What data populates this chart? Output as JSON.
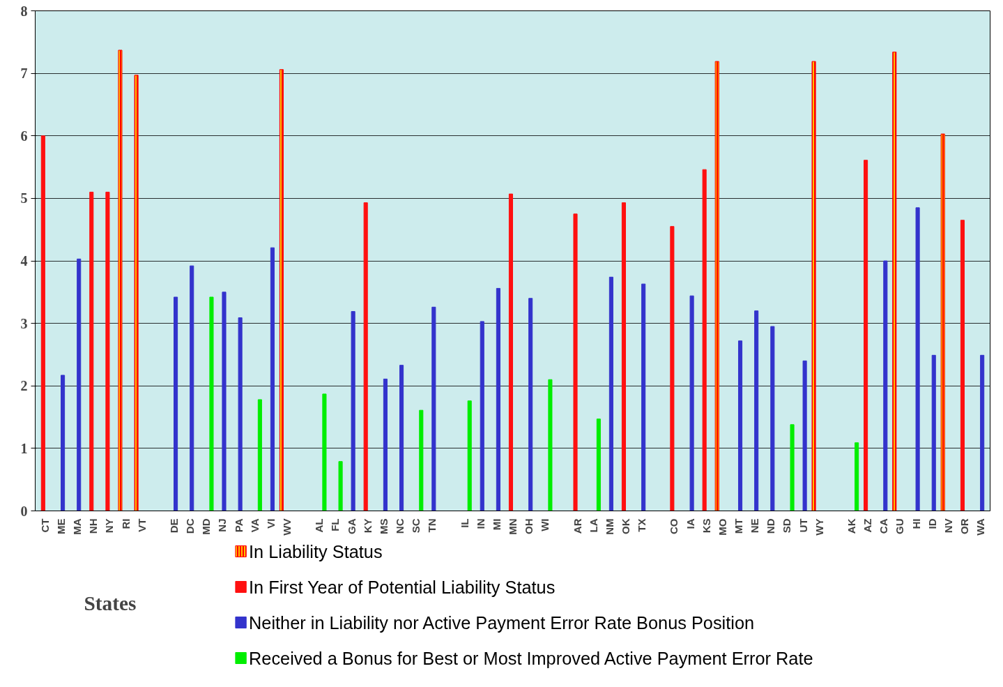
{
  "chart_data": {
    "type": "bar",
    "categories": [
      "CT",
      "ME",
      "MA",
      "NH",
      "NY",
      "RI",
      "VT",
      null,
      "DE",
      "DC",
      "MD",
      "NJ",
      "PA",
      "VA",
      "VI",
      "WV",
      null,
      "AL",
      "FL",
      "GA",
      "KY",
      "MS",
      "NC",
      "SC",
      "TN",
      null,
      "IL",
      "IN",
      "MI",
      "MN",
      "OH",
      "WI",
      null,
      "AR",
      "LA",
      "NM",
      "OK",
      "TX",
      null,
      "CO",
      "IA",
      "KS",
      "MO",
      "MT",
      "NE",
      "ND",
      "SD",
      "UT",
      "WY",
      null,
      "AK",
      "AZ",
      "CA",
      "GU",
      "HI",
      "ID",
      "NV",
      "OR",
      "WA"
    ],
    "series": [
      {
        "name": "In Liability Status",
        "color": "#ff0000",
        "values": [
          null,
          null,
          null,
          null,
          null,
          7.37,
          6.97,
          null,
          null,
          null,
          null,
          null,
          null,
          null,
          null,
          7.06,
          null,
          null,
          null,
          null,
          null,
          null,
          null,
          null,
          null,
          null,
          null,
          null,
          null,
          null,
          null,
          null,
          null,
          null,
          null,
          null,
          null,
          null,
          null,
          null,
          null,
          null,
          7.19,
          null,
          null,
          null,
          null,
          null,
          7.19,
          null,
          null,
          null,
          null,
          7.34,
          null,
          null,
          6.03,
          null,
          null
        ]
      },
      {
        "name": "In First Year of Potential Liability Status",
        "color": "#ff1010",
        "values": [
          6.0,
          null,
          null,
          5.1,
          5.1,
          null,
          null,
          null,
          null,
          null,
          null,
          null,
          null,
          null,
          null,
          null,
          null,
          null,
          null,
          null,
          4.93,
          null,
          null,
          null,
          null,
          null,
          null,
          null,
          null,
          5.07,
          null,
          null,
          null,
          4.75,
          null,
          null,
          4.93,
          null,
          null,
          4.55,
          null,
          5.46,
          null,
          null,
          null,
          null,
          null,
          null,
          null,
          null,
          null,
          5.61,
          null,
          null,
          null,
          null,
          null,
          4.65,
          null
        ]
      },
      {
        "name": "Neither in Liability nor Active Payment Error Rate Bonus Position",
        "color": "#3333cc",
        "values": [
          null,
          2.17,
          4.03,
          null,
          null,
          null,
          null,
          null,
          3.42,
          3.92,
          null,
          3.5,
          3.09,
          null,
          4.21,
          null,
          null,
          null,
          null,
          3.19,
          null,
          2.11,
          2.33,
          null,
          3.26,
          null,
          null,
          3.03,
          3.56,
          null,
          3.4,
          null,
          null,
          null,
          null,
          3.74,
          null,
          3.63,
          null,
          null,
          3.44,
          null,
          null,
          2.72,
          3.2,
          2.95,
          null,
          2.4,
          null,
          null,
          null,
          null,
          4.0,
          null,
          4.85,
          2.49,
          null,
          null,
          2.49
        ]
      },
      {
        "name": "Received a Bonus for Best or Most Improved Active Payment Error Rate",
        "color": "#00ee00",
        "values": [
          null,
          null,
          null,
          null,
          null,
          null,
          null,
          null,
          null,
          null,
          3.42,
          null,
          null,
          1.78,
          null,
          null,
          null,
          1.87,
          0.79,
          null,
          null,
          null,
          null,
          1.61,
          null,
          null,
          1.76,
          null,
          null,
          null,
          null,
          2.1,
          null,
          null,
          1.47,
          null,
          null,
          null,
          null,
          null,
          null,
          null,
          null,
          null,
          null,
          null,
          1.38,
          null,
          null,
          null,
          1.09,
          null,
          null,
          null,
          null,
          null,
          null,
          null,
          null
        ]
      }
    ],
    "xlabel": "States",
    "ylim": [
      0,
      8
    ],
    "yticks": [
      0,
      1,
      2,
      3,
      4,
      5,
      6,
      7,
      8
    ],
    "grid": "y",
    "legend": "bottom"
  }
}
